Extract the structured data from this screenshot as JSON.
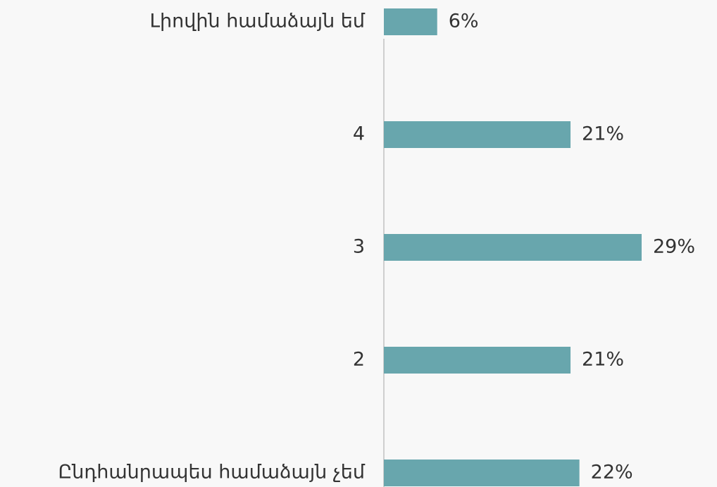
{
  "chart_data": {
    "type": "bar",
    "orientation": "horizontal",
    "categories": [
      "Լիովին համաձայն եմ",
      "4",
      "3",
      "2",
      "Ընդհանրապես համաձայն չեմ"
    ],
    "values": [
      6,
      21,
      29,
      21,
      22
    ],
    "value_labels": [
      "6%",
      "21%",
      "29%",
      "21%",
      "22%"
    ],
    "color": "#68a6ad"
  }
}
